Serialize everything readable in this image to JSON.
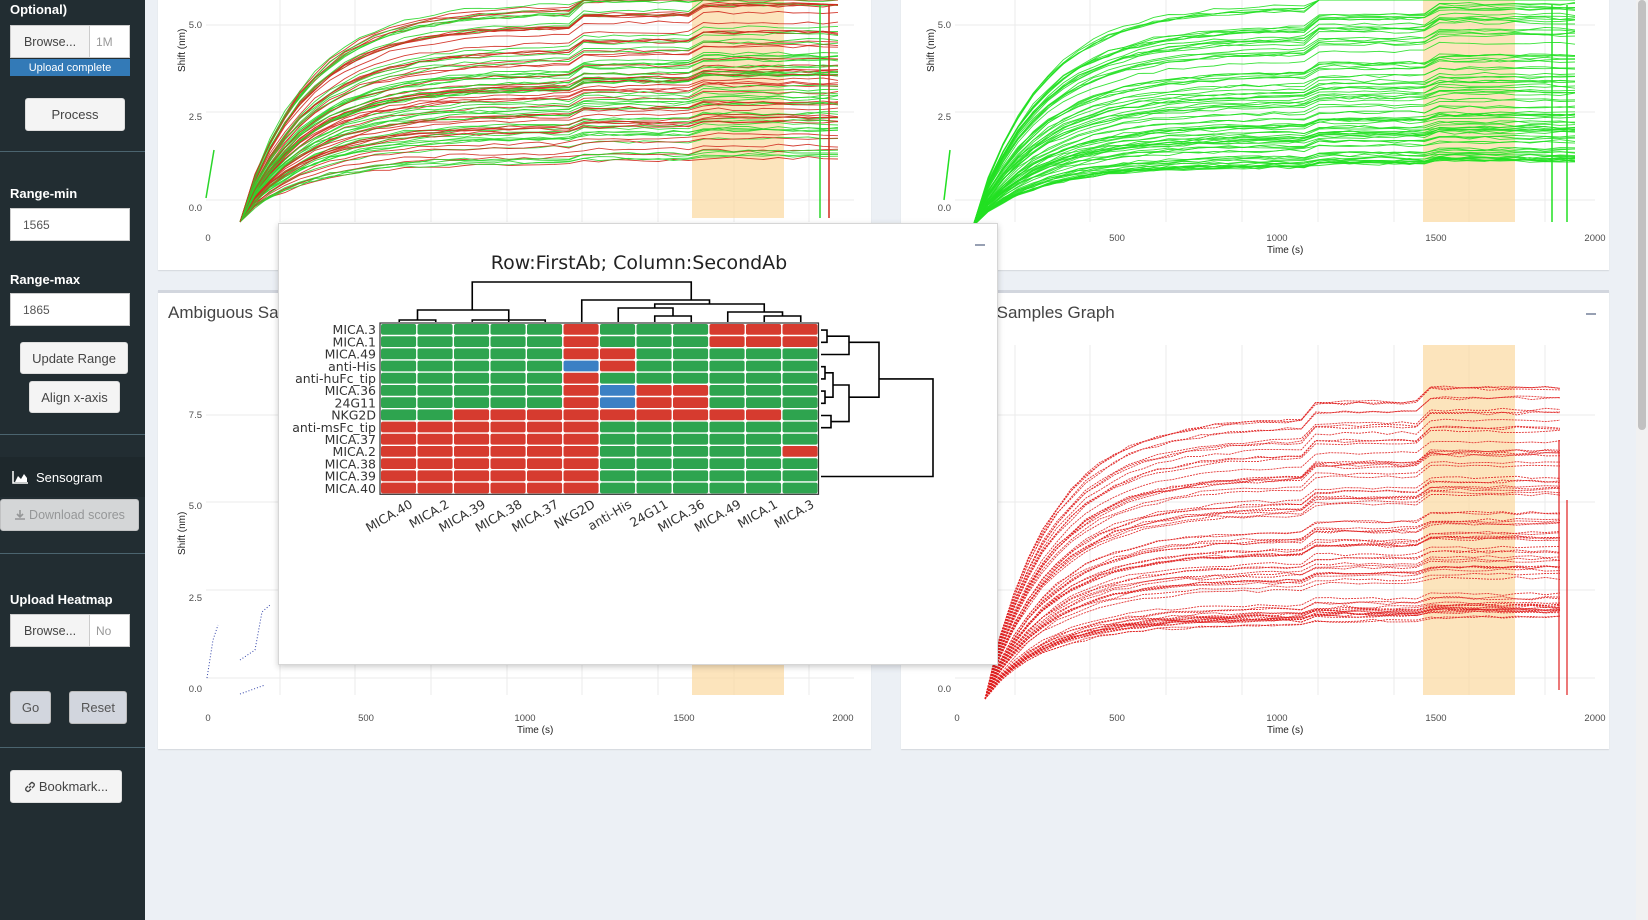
{
  "sidebar": {
    "optional_label": "Optional)",
    "browse1_label": "Browse...",
    "file1_name": "1M",
    "upload_status": "Upload complete",
    "process_label": "Process",
    "range_min_label": "Range-min",
    "range_min_value": "1565",
    "range_max_label": "Range-max",
    "range_max_value": "1865",
    "update_range_label": "Update Range",
    "align_x_label": "Align x-axis",
    "sensogram_label": "Sensogram",
    "download_scores_label": "Download scores",
    "upload_heatmap_label": "Upload Heatmap",
    "browse2_label": "Browse...",
    "file2_name": "No",
    "go_label": "Go",
    "reset_label": "Reset",
    "bookmark_label": "Bookmark..."
  },
  "panels": {
    "ambiguous_title": "Ambiguous Sa",
    "right_bottom_title": "ng Samples Graph"
  },
  "colors": {
    "highlight_band": "#fbd9a0",
    "green": "#2ea44f",
    "red": "#d63b2f",
    "blue": "#3b80c4"
  },
  "axis": {
    "y_title": "Shift (nm)",
    "x_title": "Time (s)",
    "y_ticks_top": [
      "5.0",
      "2.5",
      "0.0"
    ],
    "y_ticks_bottom": [
      "7.5",
      "5.0",
      "2.5",
      "0.0"
    ],
    "x_ticks": [
      "0",
      "500",
      "1000",
      "1500",
      "2000"
    ],
    "x_ticks_right_top": [
      "500",
      "1000",
      "1500",
      "2000"
    ]
  },
  "heatmap": {
    "title": "Row:FirstAb; Column:SecondAb",
    "rows": [
      "MICA.3",
      "MICA.1",
      "MICA.49",
      "anti-His",
      "anti-huFc_tip",
      "MICA.36",
      "24G11",
      "NKG2D",
      "anti-msFc_tip",
      "MICA.37",
      "MICA.2",
      "MICA.38",
      "MICA.39",
      "MICA.40"
    ],
    "cols": [
      "MICA.40",
      "MICA.2",
      "MICA.39",
      "MICA.38",
      "MICA.37",
      "NKG2D",
      "anti-His",
      "24G11",
      "MICA.36",
      "MICA.49",
      "MICA.1",
      "MICA.3"
    ],
    "cells": [
      [
        "G",
        "G",
        "G",
        "G",
        "G",
        "R",
        "G",
        "G",
        "G",
        "R",
        "R",
        "R"
      ],
      [
        "G",
        "G",
        "G",
        "G",
        "G",
        "R",
        "G",
        "G",
        "G",
        "R",
        "R",
        "R"
      ],
      [
        "G",
        "G",
        "G",
        "G",
        "G",
        "R",
        "R",
        "G",
        "G",
        "G",
        "G",
        "G"
      ],
      [
        "G",
        "G",
        "G",
        "G",
        "G",
        "B",
        "R",
        "G",
        "G",
        "G",
        "G",
        "G"
      ],
      [
        "G",
        "G",
        "G",
        "G",
        "G",
        "R",
        "G",
        "G",
        "G",
        "G",
        "G",
        "G"
      ],
      [
        "G",
        "G",
        "G",
        "G",
        "G",
        "R",
        "B",
        "R",
        "R",
        "G",
        "G",
        "G"
      ],
      [
        "G",
        "G",
        "G",
        "G",
        "G",
        "R",
        "B",
        "R",
        "R",
        "G",
        "G",
        "G"
      ],
      [
        "G",
        "G",
        "R",
        "R",
        "R",
        "R",
        "R",
        "R",
        "R",
        "R",
        "R",
        "G"
      ],
      [
        "R",
        "R",
        "R",
        "R",
        "R",
        "R",
        "G",
        "G",
        "G",
        "G",
        "G",
        "G"
      ],
      [
        "R",
        "R",
        "R",
        "R",
        "R",
        "R",
        "G",
        "G",
        "G",
        "G",
        "G",
        "G"
      ],
      [
        "R",
        "R",
        "R",
        "R",
        "R",
        "R",
        "G",
        "G",
        "G",
        "G",
        "G",
        "R"
      ],
      [
        "R",
        "R",
        "R",
        "R",
        "R",
        "R",
        "G",
        "G",
        "G",
        "G",
        "G",
        "G"
      ],
      [
        "R",
        "R",
        "R",
        "R",
        "R",
        "R",
        "G",
        "G",
        "G",
        "G",
        "G",
        "G"
      ],
      [
        "R",
        "R",
        "R",
        "R",
        "R",
        "R",
        "G",
        "G",
        "G",
        "G",
        "G",
        "G"
      ]
    ]
  }
}
